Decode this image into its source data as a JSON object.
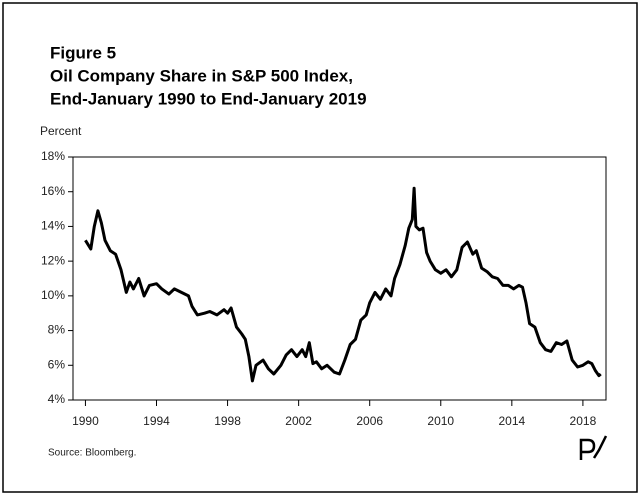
{
  "chart_data": {
    "type": "line",
    "title": [
      "Figure 5",
      "Oil Company Share in S&P 500 Index,",
      "End-January 1990 to End-January 2019"
    ],
    "ylabel": "Percent",
    "source": "Source: Bloomberg.",
    "color": "#000000",
    "xlim": [
      1989.3,
      2019.3
    ],
    "xticks": [
      1990,
      1994,
      1998,
      2002,
      2006,
      2010,
      2014,
      2018
    ],
    "ylim": [
      4,
      18
    ],
    "yticks": [
      {
        "value": 4,
        "label": "4%"
      },
      {
        "value": 6,
        "label": "6%"
      },
      {
        "value": 8,
        "label": "8%"
      },
      {
        "value": 10,
        "label": "10%"
      },
      {
        "value": 12,
        "label": "12%"
      },
      {
        "value": 14,
        "label": "14%"
      },
      {
        "value": 16,
        "label": "16%"
      },
      {
        "value": 18,
        "label": "18%"
      }
    ],
    "x": [
      1990.0,
      1990.3,
      1990.5,
      1990.7,
      1990.9,
      1991.1,
      1991.4,
      1991.7,
      1992.0,
      1992.3,
      1992.5,
      1992.7,
      1993.0,
      1993.3,
      1993.6,
      1994.0,
      1994.3,
      1994.7,
      1995.0,
      1995.4,
      1995.8,
      1996.0,
      1996.3,
      1996.7,
      1997.0,
      1997.4,
      1997.8,
      1998.0,
      1998.2,
      1998.5,
      1998.8,
      1999.0,
      1999.2,
      1999.4,
      1999.6,
      2000.0,
      2000.3,
      2000.6,
      2001.0,
      2001.3,
      2001.6,
      2001.9,
      2002.2,
      2002.4,
      2002.6,
      2002.8,
      2003.0,
      2003.3,
      2003.6,
      2004.0,
      2004.3,
      2004.6,
      2004.9,
      2005.2,
      2005.5,
      2005.8,
      2006.0,
      2006.3,
      2006.6,
      2006.9,
      2007.2,
      2007.4,
      2007.7,
      2008.0,
      2008.2,
      2008.4,
      2008.5,
      2008.6,
      2008.8,
      2009.0,
      2009.2,
      2009.4,
      2009.7,
      2010.0,
      2010.3,
      2010.6,
      2010.9,
      2011.2,
      2011.5,
      2011.8,
      2012.0,
      2012.3,
      2012.6,
      2012.9,
      2013.2,
      2013.5,
      2013.8,
      2014.1,
      2014.4,
      2014.6,
      2014.8,
      2015.0,
      2015.3,
      2015.6,
      2015.9,
      2016.2,
      2016.5,
      2016.8,
      2017.1,
      2017.4,
      2017.7,
      2018.0,
      2018.3,
      2018.5,
      2018.7,
      2018.9,
      2019.0
    ],
    "values": [
      13.2,
      12.7,
      14.0,
      14.9,
      14.2,
      13.2,
      12.6,
      12.4,
      11.5,
      10.2,
      10.8,
      10.4,
      11.0,
      10.0,
      10.6,
      10.7,
      10.4,
      10.1,
      10.4,
      10.2,
      10.0,
      9.4,
      8.9,
      9.0,
      9.1,
      8.9,
      9.2,
      9.0,
      9.3,
      8.2,
      7.8,
      7.5,
      6.5,
      5.1,
      6.0,
      6.3,
      5.8,
      5.5,
      6.0,
      6.6,
      6.9,
      6.5,
      6.9,
      6.5,
      7.3,
      6.1,
      6.2,
      5.8,
      6.0,
      5.6,
      5.5,
      6.3,
      7.2,
      7.5,
      8.6,
      8.9,
      9.6,
      10.2,
      9.8,
      10.4,
      10.0,
      11.0,
      11.8,
      12.9,
      13.9,
      14.4,
      16.2,
      14.0,
      13.8,
      13.9,
      12.5,
      12.0,
      11.5,
      11.3,
      11.5,
      11.1,
      11.5,
      12.8,
      13.1,
      12.4,
      12.6,
      11.6,
      11.4,
      11.1,
      11.0,
      10.6,
      10.6,
      10.4,
      10.6,
      10.5,
      9.6,
      8.4,
      8.2,
      7.3,
      6.9,
      6.8,
      7.3,
      7.2,
      7.4,
      6.3,
      5.9,
      6.0,
      6.2,
      6.1,
      5.7,
      5.4,
      5.5
    ]
  }
}
